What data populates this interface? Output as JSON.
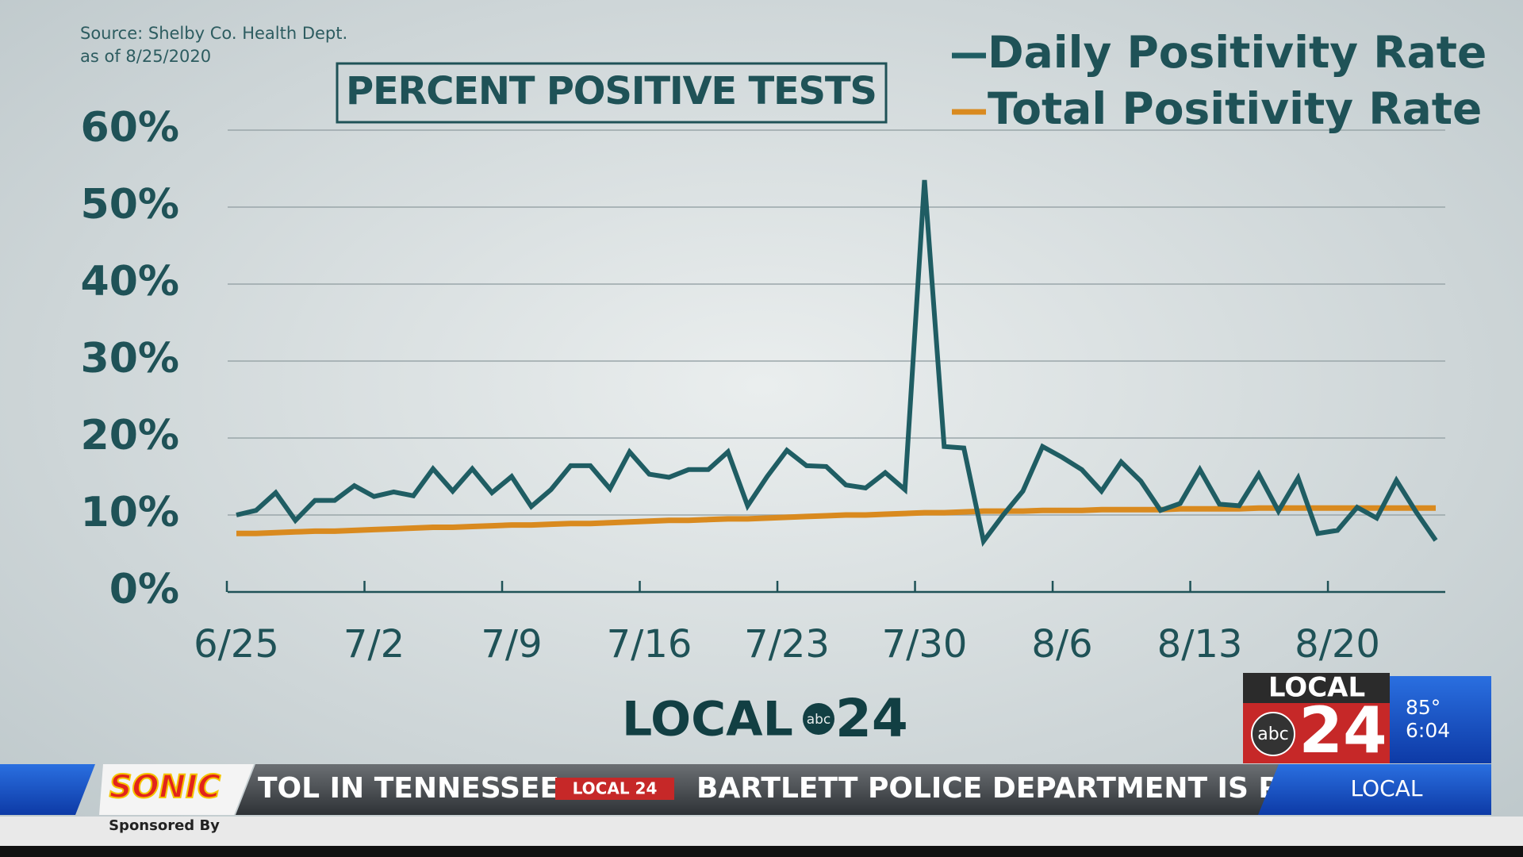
{
  "chart_data": {
    "type": "line",
    "title": "PERCENT POSITIVE TESTS",
    "source": "Source:  Shelby Co. Health Dept.",
    "as_of": "as of 8/25/2020",
    "categories": [
      "6/25",
      null,
      null,
      null,
      null,
      null,
      null,
      "7/2",
      null,
      null,
      null,
      null,
      null,
      null,
      "7/9",
      null,
      null,
      null,
      null,
      null,
      null,
      "7/16",
      null,
      null,
      null,
      null,
      null,
      null,
      "7/23",
      null,
      null,
      null,
      null,
      null,
      null,
      "7/30",
      null,
      null,
      null,
      null,
      null,
      null,
      "8/6",
      null,
      null,
      null,
      null,
      null,
      null,
      "8/13",
      null,
      null,
      null,
      null,
      null,
      null,
      "8/20",
      null,
      null,
      null,
      null,
      null
    ],
    "series": [
      {
        "name": "Daily Positivity Rate",
        "color": "#1f5d63",
        "values": [
          10.0,
          10.6,
          12.9,
          9.3,
          11.9,
          11.9,
          13.8,
          12.4,
          13.0,
          12.5,
          16.0,
          13.1,
          16.0,
          12.9,
          15.0,
          11.1,
          13.3,
          16.4,
          16.4,
          13.4,
          18.2,
          15.3,
          14.9,
          15.9,
          15.9,
          18.2,
          11.2,
          15.0,
          18.4,
          16.4,
          16.3,
          13.9,
          13.5,
          15.5,
          13.3,
          53.5,
          18.9,
          18.7,
          6.6,
          10.0,
          13.1,
          18.9,
          17.5,
          15.9,
          13.1,
          16.9,
          14.4,
          10.6,
          11.5,
          15.9,
          11.4,
          11.2,
          15.3,
          10.5,
          14.8,
          7.6,
          8.0,
          11.0,
          9.6,
          14.5,
          10.4,
          6.7
        ]
      },
      {
        "name": "Total Positivity Rate",
        "color": "#d98a1f",
        "values": [
          7.6,
          7.6,
          7.7,
          7.8,
          7.9,
          7.9,
          8.0,
          8.1,
          8.2,
          8.3,
          8.4,
          8.4,
          8.5,
          8.6,
          8.7,
          8.7,
          8.8,
          8.9,
          8.9,
          9.0,
          9.1,
          9.2,
          9.3,
          9.3,
          9.4,
          9.5,
          9.5,
          9.6,
          9.7,
          9.8,
          9.9,
          10.0,
          10.0,
          10.1,
          10.2,
          10.3,
          10.3,
          10.4,
          10.5,
          10.5,
          10.5,
          10.6,
          10.6,
          10.6,
          10.7,
          10.7,
          10.7,
          10.7,
          10.8,
          10.8,
          10.8,
          10.8,
          10.9,
          10.9,
          10.9,
          10.9,
          10.9,
          10.9,
          10.9,
          10.9,
          10.9,
          10.9
        ]
      }
    ],
    "ylim": [
      0,
      60
    ],
    "yticks": [
      {
        "value": 0,
        "label": "0%"
      },
      {
        "value": 10,
        "label": "10%"
      },
      {
        "value": 20,
        "label": "20%"
      },
      {
        "value": 30,
        "label": "30%"
      },
      {
        "value": 40,
        "label": "40%"
      },
      {
        "value": 50,
        "label": "50%"
      },
      {
        "value": 60,
        "label": "60%"
      }
    ],
    "grid": true,
    "legend": "top-right"
  },
  "overlay": {
    "logo_local": "LOCAL",
    "logo_abc": "abc",
    "logo_24": "24",
    "sponsor": "SONIC",
    "sponsored_by": "Sponsored By",
    "ticker_1": "TOL IN TENNESSEE",
    "ticker_logo": "LOCAL 24",
    "ticker_2": "BARTLETT POLICE DEPARTMENT IS PA",
    "section": "LOCAL",
    "temp": "85°",
    "time": "6:04"
  }
}
